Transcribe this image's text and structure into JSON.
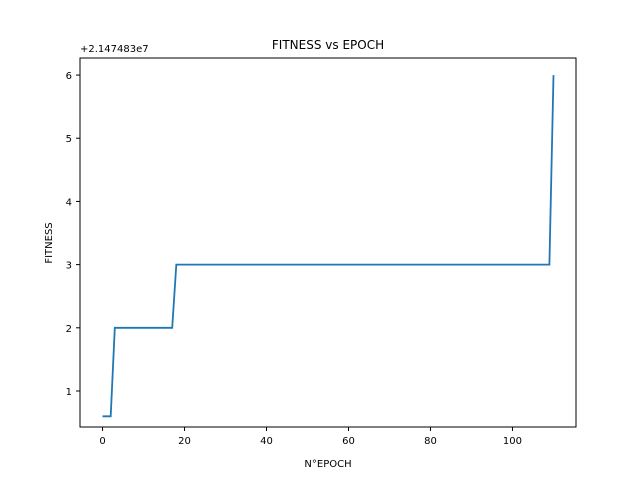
{
  "chart_data": {
    "type": "line",
    "title": "FITNESS vs EPOCH",
    "xlabel": "N°EPOCH",
    "ylabel": "FITNESS",
    "offset_label": "+2.147483e7",
    "xlim": [
      -5.5,
      115.5
    ],
    "ylim": [
      0.43,
      6.27
    ],
    "xticks": [
      0,
      20,
      40,
      60,
      80,
      100
    ],
    "yticks": [
      1,
      2,
      3,
      4,
      5,
      6
    ],
    "grid": false,
    "series_color": "#1f77b4",
    "series": [
      {
        "x": [
          0,
          2,
          3,
          17,
          18,
          109,
          110
        ],
        "y": [
          0.6,
          0.6,
          2,
          2,
          3,
          3,
          6
        ]
      }
    ]
  }
}
